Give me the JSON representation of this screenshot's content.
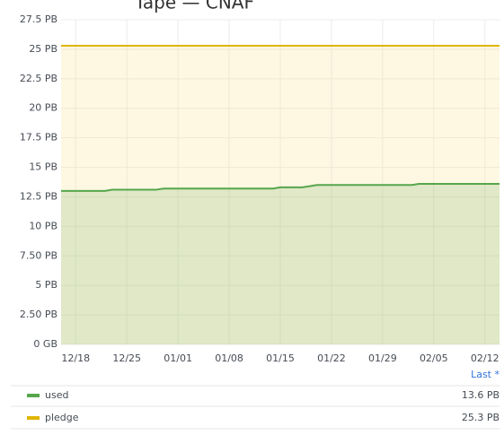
{
  "chart_data": {
    "type": "line",
    "title": "Tape — CNAF",
    "x": [
      "12/16",
      "12/22",
      "12/23",
      "12/29",
      "12/30",
      "01/14",
      "01/15",
      "01/18",
      "01/19",
      "01/20",
      "02/02",
      "02/03",
      "02/14"
    ],
    "xlim": [
      "12/16",
      "02/14"
    ],
    "xticks": [
      "12/18",
      "12/25",
      "01/01",
      "01/08",
      "01/15",
      "01/22",
      "01/29",
      "02/05",
      "02/12"
    ],
    "ylim": [
      0,
      27.5
    ],
    "yticks": [
      {
        "value": 0,
        "label": "0 GB"
      },
      {
        "value": 2.5,
        "label": "2.50 PB"
      },
      {
        "value": 5,
        "label": "5 PB"
      },
      {
        "value": 7.5,
        "label": "7.50 PB"
      },
      {
        "value": 10,
        "label": "10 PB"
      },
      {
        "value": 12.5,
        "label": "12.5 PB"
      },
      {
        "value": 15,
        "label": "15 PB"
      },
      {
        "value": 17.5,
        "label": "17.5 PB"
      },
      {
        "value": 20,
        "label": "20 PB"
      },
      {
        "value": 22.5,
        "label": "22.5 PB"
      },
      {
        "value": 25,
        "label": "25 PB"
      },
      {
        "value": 27.5,
        "label": "27.5 PB"
      }
    ],
    "grid": true,
    "legend_header": "Last *",
    "series": [
      {
        "name": "used",
        "color": "#56a64b",
        "values": [
          13.0,
          13.0,
          13.1,
          13.1,
          13.2,
          13.2,
          13.3,
          13.3,
          13.4,
          13.5,
          13.5,
          13.6,
          13.6
        ],
        "last_label": "13.6 PB"
      },
      {
        "name": "pledge",
        "color": "#e0b400",
        "values": [
          25.3,
          25.3,
          25.3,
          25.3,
          25.3,
          25.3,
          25.3,
          25.3,
          25.3,
          25.3,
          25.3,
          25.3,
          25.3
        ],
        "last_label": "25.3 PB"
      }
    ]
  }
}
